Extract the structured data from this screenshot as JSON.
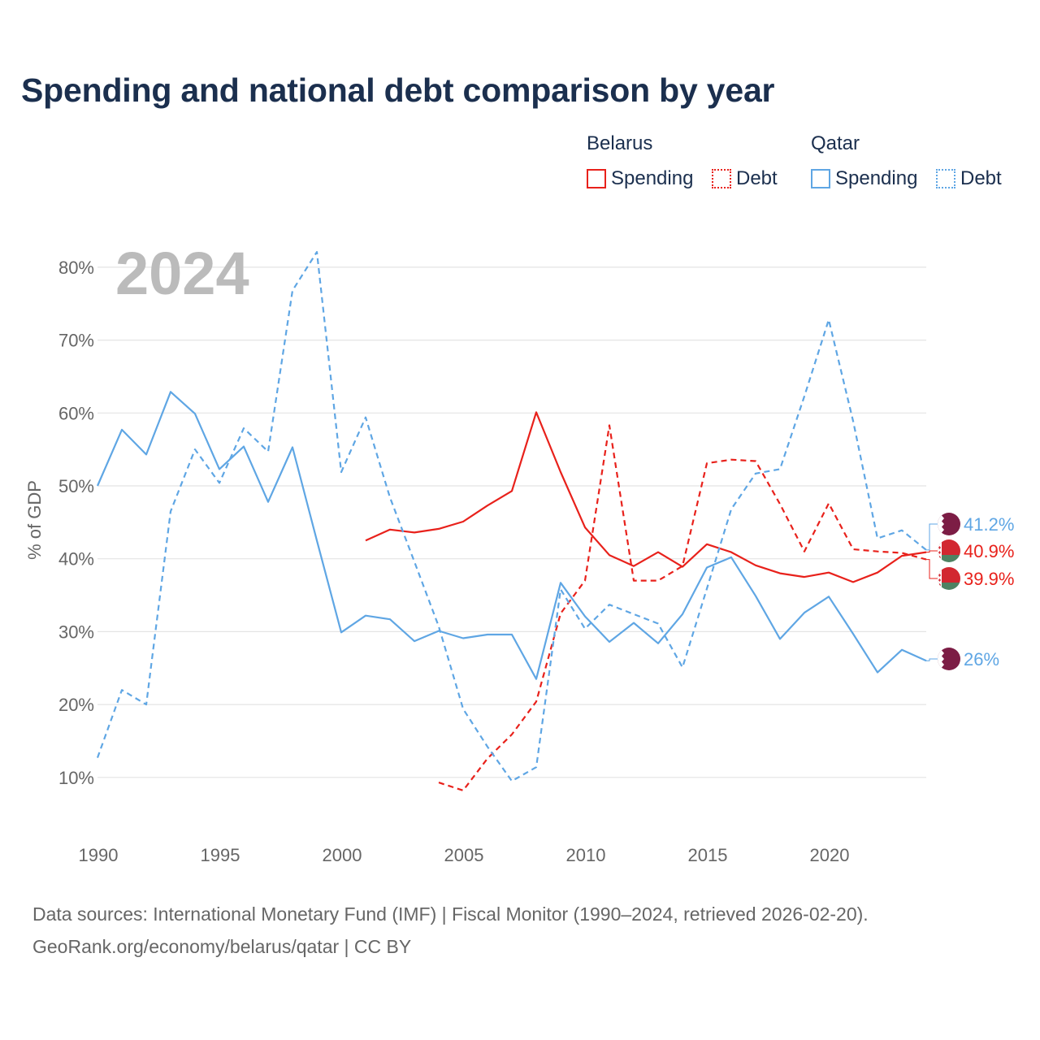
{
  "title": "Spending and national debt comparison by year",
  "year_label": "2024",
  "legend": {
    "groups": [
      {
        "name": "Belarus",
        "items": [
          {
            "label": "Spending",
            "style": "solid"
          },
          {
            "label": "Debt",
            "style": "dotted"
          }
        ],
        "color": "#e8211b"
      },
      {
        "name": "Qatar",
        "items": [
          {
            "label": "Spending",
            "style": "solid"
          },
          {
            "label": "Debt",
            "style": "dotted"
          }
        ],
        "color": "#5fa6e4"
      }
    ]
  },
  "source_lines": [
    "Data sources: International Monetary Fund (IMF) | Fiscal Monitor (1990–2024, retrieved 2026-02-20).",
    "GeoRank.org/economy/belarus/qatar | CC BY"
  ],
  "chart_data": {
    "type": "line",
    "title": "Spending and national debt comparison by year",
    "xlabel": "",
    "ylabel": "% of GDP",
    "xlim": [
      1990,
      2024
    ],
    "ylim": [
      0,
      85
    ],
    "x_ticks": [
      1990,
      1995,
      2000,
      2005,
      2010,
      2015,
      2020
    ],
    "x_tick_labels": [
      "1990",
      "1995",
      "2000",
      "2005",
      "2010",
      "2015",
      "2020"
    ],
    "y_ticks": [
      10,
      20,
      30,
      40,
      50,
      60,
      70,
      80
    ],
    "y_tick_labels": [
      "10%",
      "20%",
      "30%",
      "40%",
      "50%",
      "60%",
      "70%",
      "80%"
    ],
    "grid": true,
    "legend_position": "top-right",
    "series": [
      {
        "name": "Belarus Spending",
        "country": "Belarus",
        "measure": "Spending",
        "color": "#e8211b",
        "dash": "solid",
        "x": [
          2001,
          2002,
          2003,
          2004,
          2005,
          2006,
          2007,
          2008,
          2009,
          2010,
          2011,
          2012,
          2013,
          2014,
          2015,
          2016,
          2017,
          2018,
          2019,
          2020,
          2021,
          2022,
          2023,
          2024
        ],
        "values": [
          42.5,
          44.0,
          43.6,
          44.1,
          45.1,
          47.3,
          49.3,
          60.1,
          51.9,
          44.3,
          40.5,
          39.0,
          40.9,
          38.9,
          42.0,
          40.9,
          39.1,
          38.0,
          37.5,
          38.1,
          36.8,
          38.1,
          40.4,
          40.9
        ],
        "end_label": "40.9%"
      },
      {
        "name": "Belarus Debt",
        "country": "Belarus",
        "measure": "Debt",
        "color": "#e8211b",
        "dash": "dashed",
        "x": [
          2004,
          2005,
          2006,
          2007,
          2008,
          2009,
          2010,
          2011,
          2012,
          2013,
          2014,
          2015,
          2016,
          2017,
          2018,
          2019,
          2020,
          2021,
          2022,
          2023,
          2024
        ],
        "values": [
          9.3,
          8.2,
          12.6,
          15.9,
          20.4,
          32.5,
          37.0,
          58.3,
          37.0,
          37.0,
          39.0,
          53.1,
          53.6,
          53.4,
          47.5,
          41.0,
          47.6,
          41.3,
          41.0,
          40.8,
          39.9
        ],
        "end_label": "39.9%"
      },
      {
        "name": "Qatar Spending",
        "country": "Qatar",
        "measure": "Spending",
        "color": "#5fa6e4",
        "dash": "solid",
        "x": [
          1990,
          1991,
          1992,
          1993,
          1994,
          1995,
          1996,
          1997,
          1998,
          1999,
          2000,
          2001,
          2002,
          2003,
          2004,
          2005,
          2006,
          2007,
          2008,
          2009,
          2010,
          2011,
          2012,
          2013,
          2014,
          2015,
          2016,
          2017,
          2018,
          2019,
          2020,
          2021,
          2022,
          2023,
          2024
        ],
        "values": [
          50.0,
          57.7,
          54.3,
          62.9,
          59.9,
          52.3,
          55.4,
          47.8,
          55.3,
          42.5,
          29.9,
          32.2,
          31.7,
          28.7,
          30.1,
          29.1,
          29.6,
          29.6,
          23.5,
          36.7,
          32.1,
          28.6,
          31.2,
          28.4,
          32.4,
          38.8,
          40.2,
          34.9,
          29.0,
          32.6,
          34.8,
          29.7,
          24.4,
          27.5,
          26.0
        ],
        "end_label": "26%"
      },
      {
        "name": "Qatar Debt",
        "country": "Qatar",
        "measure": "Debt",
        "color": "#5fa6e4",
        "dash": "dashed",
        "x": [
          1990,
          1991,
          1992,
          1993,
          1994,
          1995,
          1996,
          1997,
          1998,
          1999,
          2000,
          2001,
          2002,
          2003,
          2004,
          2005,
          2006,
          2007,
          2008,
          2009,
          2010,
          2011,
          2012,
          2013,
          2014,
          2015,
          2016,
          2017,
          2018,
          2019,
          2020,
          2021,
          2022,
          2023,
          2024
        ],
        "values": [
          12.7,
          22.0,
          20.0,
          46.5,
          55.0,
          50.4,
          57.9,
          54.7,
          76.8,
          82.1,
          51.9,
          59.4,
          48.4,
          39.6,
          30.7,
          19.4,
          14.2,
          9.5,
          11.4,
          35.8,
          30.4,
          33.7,
          32.4,
          31.1,
          25.1,
          35.9,
          46.8,
          51.7,
          52.3,
          62.3,
          72.8,
          58.9,
          42.8,
          43.9,
          41.2
        ],
        "end_label": "41.2%"
      }
    ]
  }
}
